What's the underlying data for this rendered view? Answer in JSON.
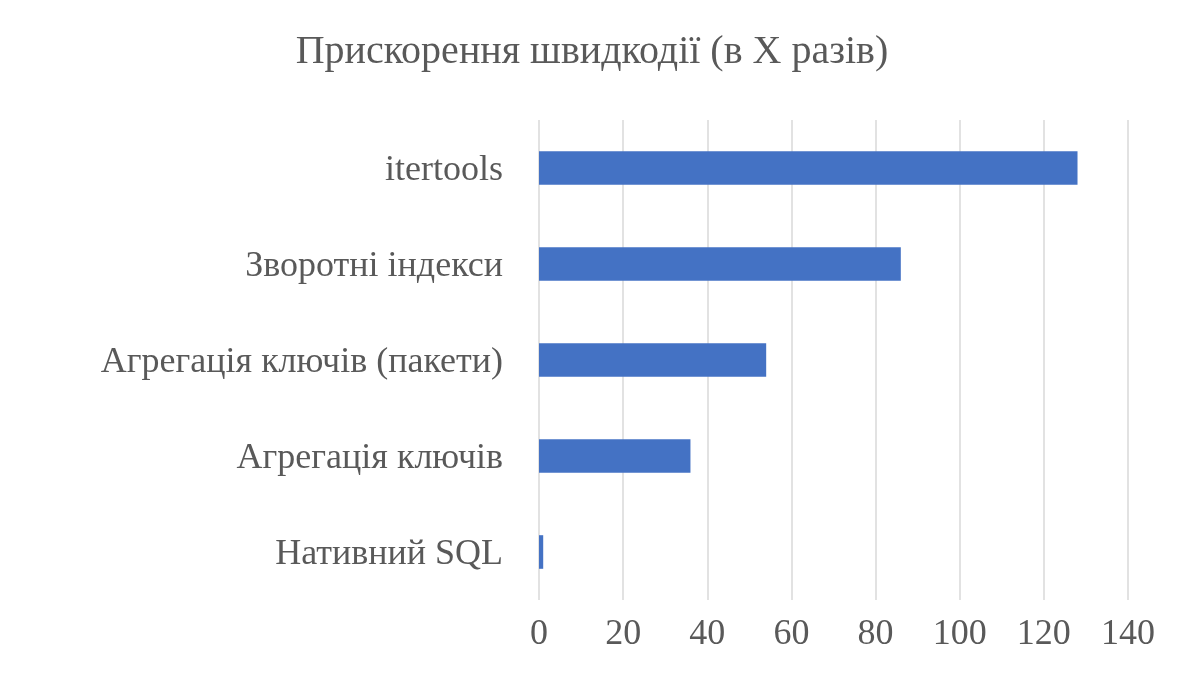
{
  "chart_data": {
    "type": "bar",
    "orientation": "horizontal",
    "title": "Прискорення швидкодії (в X разів)",
    "categories": [
      "itertools",
      "Зворотні індекси",
      "Агрегація ключів (пакети)",
      "Агрегація ключів",
      "Нативний SQL"
    ],
    "values": [
      128,
      86,
      54,
      36,
      1
    ],
    "color": "#4472c4",
    "xlim": [
      0,
      140
    ],
    "xticks": [
      0,
      20,
      40,
      60,
      80,
      100,
      120,
      140
    ],
    "grid": "x"
  }
}
